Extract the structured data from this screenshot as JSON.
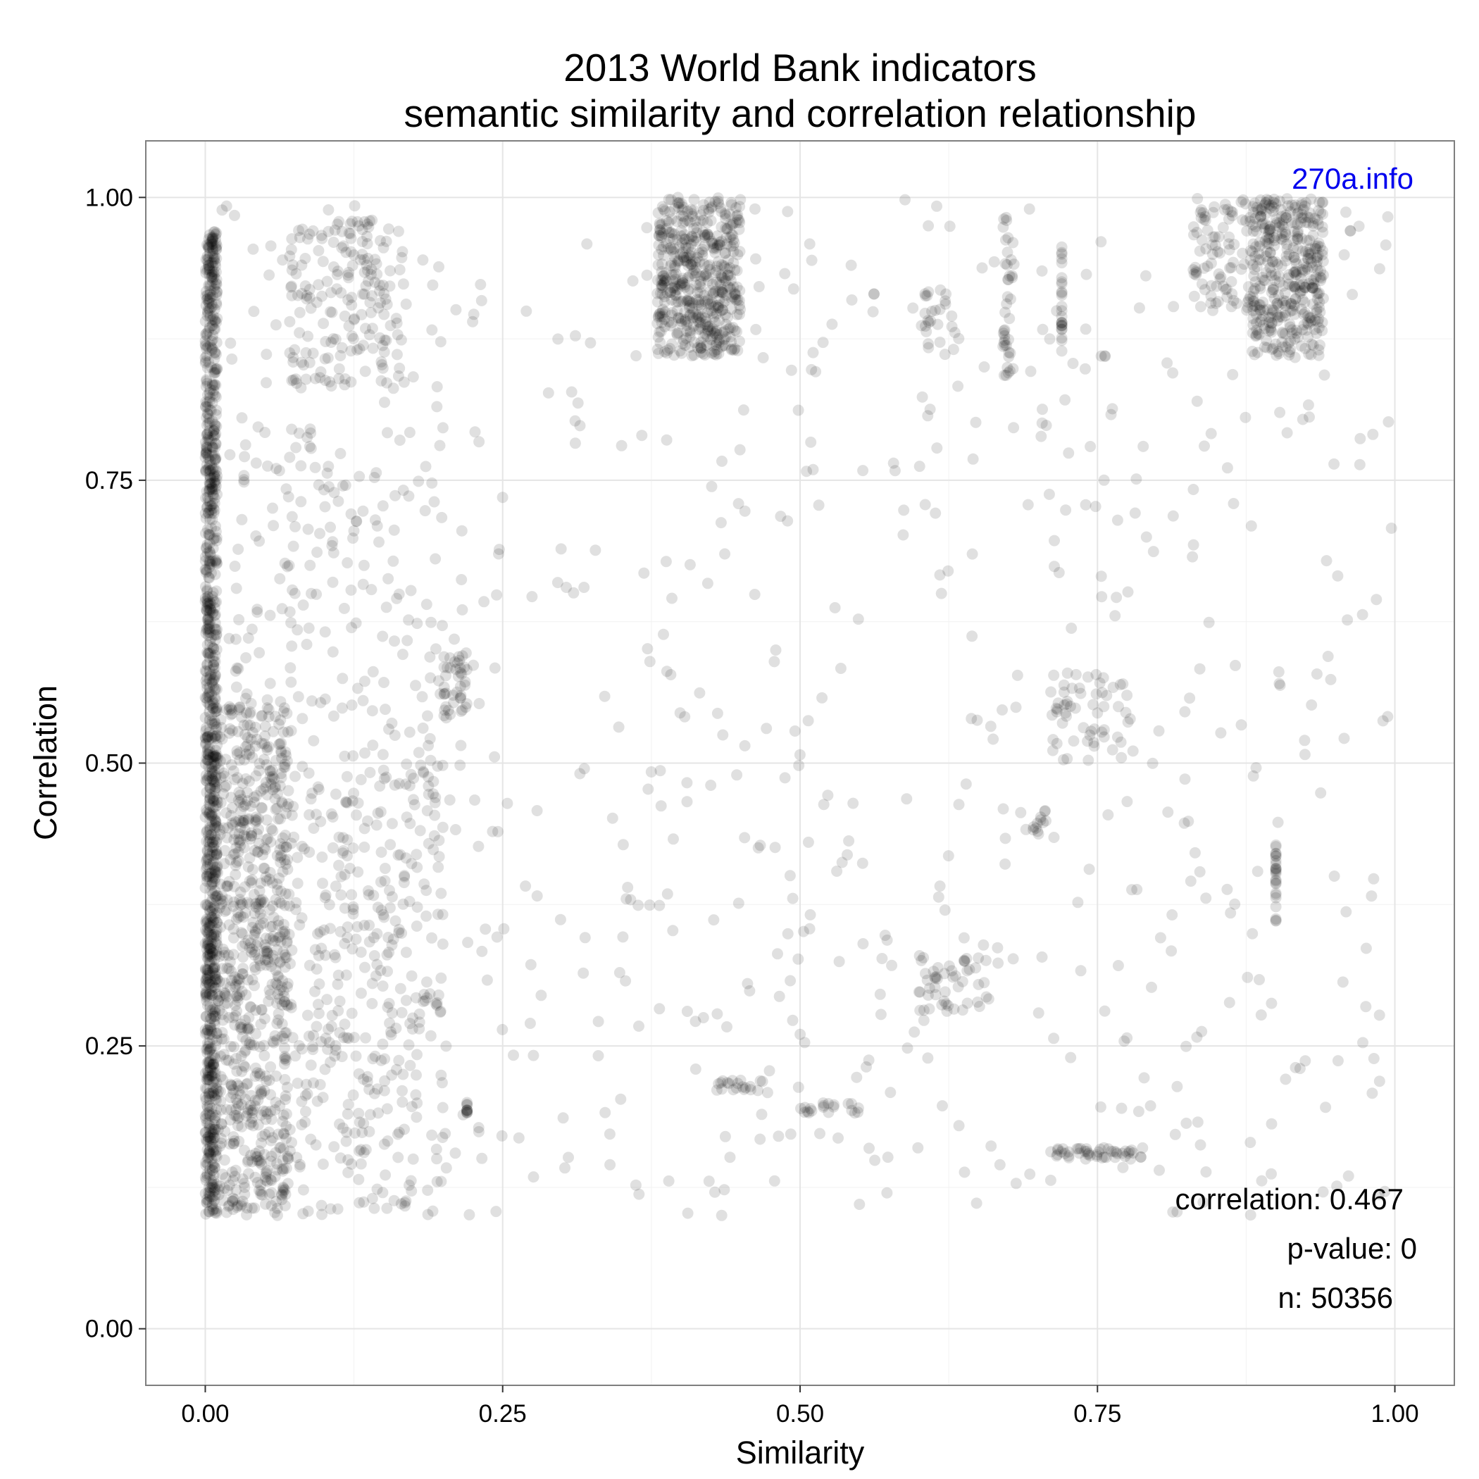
{
  "chart_data": {
    "type": "scatter",
    "title": "2013 World Bank indicators",
    "subtitle": "semantic similarity and correlation relationship",
    "xlabel": "Similarity",
    "ylabel": "Correlation",
    "xlim": [
      -0.05,
      1.05
    ],
    "ylim": [
      -0.05,
      1.05
    ],
    "x_ticks": [
      0.0,
      0.25,
      0.5,
      0.75,
      1.0
    ],
    "x_tick_labels": [
      "0.00",
      "0.25",
      "0.50",
      "0.75",
      "1.00"
    ],
    "y_ticks": [
      0.0,
      0.25,
      0.5,
      0.75,
      1.0
    ],
    "y_tick_labels": [
      "0.00",
      "0.25",
      "0.50",
      "0.75",
      "1.00"
    ],
    "grid": true,
    "point_color": "#000000",
    "point_alpha": 0.12,
    "watermark": "270a.info",
    "watermark_color": "#0000ee",
    "annotations": [
      "correlation: 0.467",
      "p-value: 0",
      "n: 50356"
    ],
    "point_groups": [
      {
        "x": [
          0.0,
          0.01
        ],
        "y": [
          0.1,
          0.97
        ],
        "n": 900
      },
      {
        "x": [
          0.0,
          0.07
        ],
        "y": [
          0.1,
          0.55
        ],
        "n": 700
      },
      {
        "x": [
          0.02,
          0.2
        ],
        "y": [
          0.1,
          0.5
        ],
        "n": 450
      },
      {
        "x": [
          0.02,
          0.2
        ],
        "y": [
          0.5,
          0.8
        ],
        "n": 150
      },
      {
        "x": [
          0.38,
          0.45
        ],
        "y": [
          0.86,
          1.0
        ],
        "n": 500
      },
      {
        "x": [
          0.88,
          0.94
        ],
        "y": [
          0.86,
          1.0
        ],
        "n": 380
      },
      {
        "x": [
          0.83,
          0.88
        ],
        "y": [
          0.9,
          1.0
        ],
        "n": 90
      },
      {
        "x": [
          0.07,
          0.17
        ],
        "y": [
          0.83,
          0.98
        ],
        "n": 180
      },
      {
        "x": [
          0.2,
          0.22
        ],
        "y": [
          0.54,
          0.6
        ],
        "n": 40
      },
      {
        "x": [
          0.71,
          0.78
        ],
        "y": [
          0.5,
          0.58
        ],
        "n": 60
      },
      {
        "x": [
          0.6,
          0.66
        ],
        "y": [
          0.28,
          0.33
        ],
        "n": 50
      },
      {
        "x": [
          0.71,
          0.79
        ],
        "y": [
          0.15,
          0.16
        ],
        "n": 45
      },
      {
        "x": [
          0.43,
          0.47
        ],
        "y": [
          0.21,
          0.22
        ],
        "n": 20
      },
      {
        "x": [
          0.5,
          0.55
        ],
        "y": [
          0.19,
          0.2
        ],
        "n": 20
      },
      {
        "x": [
          0.9,
          0.9
        ],
        "y": [
          0.36,
          0.43
        ],
        "n": 25
      },
      {
        "x": [
          0.67,
          0.68
        ],
        "y": [
          0.84,
          0.99
        ],
        "n": 40
      },
      {
        "x": [
          0.6,
          0.63
        ],
        "y": [
          0.86,
          0.92
        ],
        "n": 25
      },
      {
        "x": [
          0.72,
          0.72
        ],
        "y": [
          0.86,
          0.96
        ],
        "n": 25
      },
      {
        "x": [
          0.22,
          0.22
        ],
        "y": [
          0.19,
          0.2
        ],
        "n": 10
      },
      {
        "x": [
          0.67,
          0.71
        ],
        "y": [
          0.43,
          0.46
        ],
        "n": 15
      },
      {
        "x": [
          0.0,
          1.0
        ],
        "y": [
          0.1,
          1.0
        ],
        "n": 700
      }
    ]
  }
}
